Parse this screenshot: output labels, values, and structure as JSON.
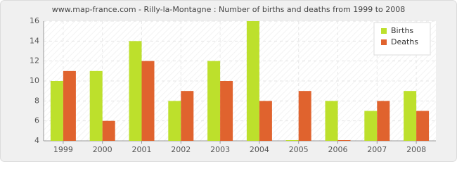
{
  "chart_data": {
    "type": "bar",
    "title": "www.map-france.com - Rilly-la-Montagne : Number of births and deaths from 1999 to 2008",
    "categories": [
      "1999",
      "2000",
      "2001",
      "2002",
      "2003",
      "2004",
      "2005",
      "2006",
      "2007",
      "2008"
    ],
    "series": [
      {
        "name": "Births",
        "color": "#bde02c",
        "values": [
          10,
          11,
          14,
          8,
          12,
          16,
          4,
          8,
          7,
          9
        ]
      },
      {
        "name": "Deaths",
        "color": "#e0632e",
        "values": [
          11,
          6,
          12,
          9,
          10,
          8,
          9,
          4,
          8,
          7
        ]
      }
    ],
    "ylim": [
      4,
      16
    ],
    "yticks": [
      4,
      6,
      8,
      10,
      12,
      14,
      16
    ],
    "grid": true,
    "legend": "top-right"
  }
}
